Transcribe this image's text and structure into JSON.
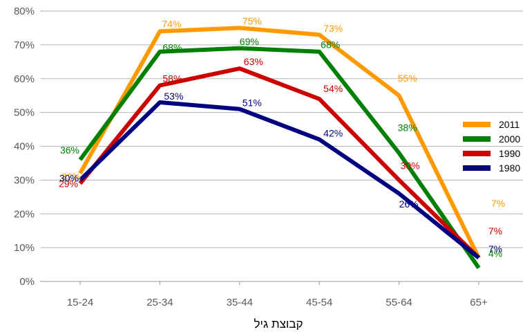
{
  "chart_data": {
    "type": "line",
    "title": "",
    "xlabel": "קבוצת גיל",
    "ylabel": "",
    "categories": [
      "15-24",
      "25-34",
      "35-44",
      "45-54",
      "55-64",
      "65+"
    ],
    "ylim": [
      0,
      80
    ],
    "y_ticks": [
      "0%",
      "10%",
      "20%",
      "30%",
      "40%",
      "50%",
      "60%",
      "70%",
      "80%"
    ],
    "grid": true,
    "legend_position": "right",
    "series": [
      {
        "name": "2011",
        "color": "#ff9900",
        "values": [
          32,
          74,
          75,
          73,
          55,
          7
        ],
        "labels": [
          "32%",
          "74%",
          "75%",
          "73%",
          "55%",
          "7%"
        ]
      },
      {
        "name": "2000",
        "color": "#008000",
        "values": [
          36,
          68,
          69,
          68,
          38,
          4
        ],
        "labels": [
          "36%",
          "68%",
          "69%",
          "68%",
          "38%",
          "4%"
        ]
      },
      {
        "name": "1990",
        "color": "#cc0000",
        "values": [
          29,
          58,
          63,
          54,
          30,
          7
        ],
        "labels": [
          "29%",
          "58%",
          "63%",
          "54%",
          "30%",
          "7%"
        ]
      },
      {
        "name": "1980",
        "color": "#000080",
        "values": [
          30,
          53,
          51,
          42,
          26,
          7
        ],
        "labels": [
          "30%",
          "53%",
          "51%",
          "42%",
          "26%",
          "7%"
        ]
      }
    ]
  }
}
